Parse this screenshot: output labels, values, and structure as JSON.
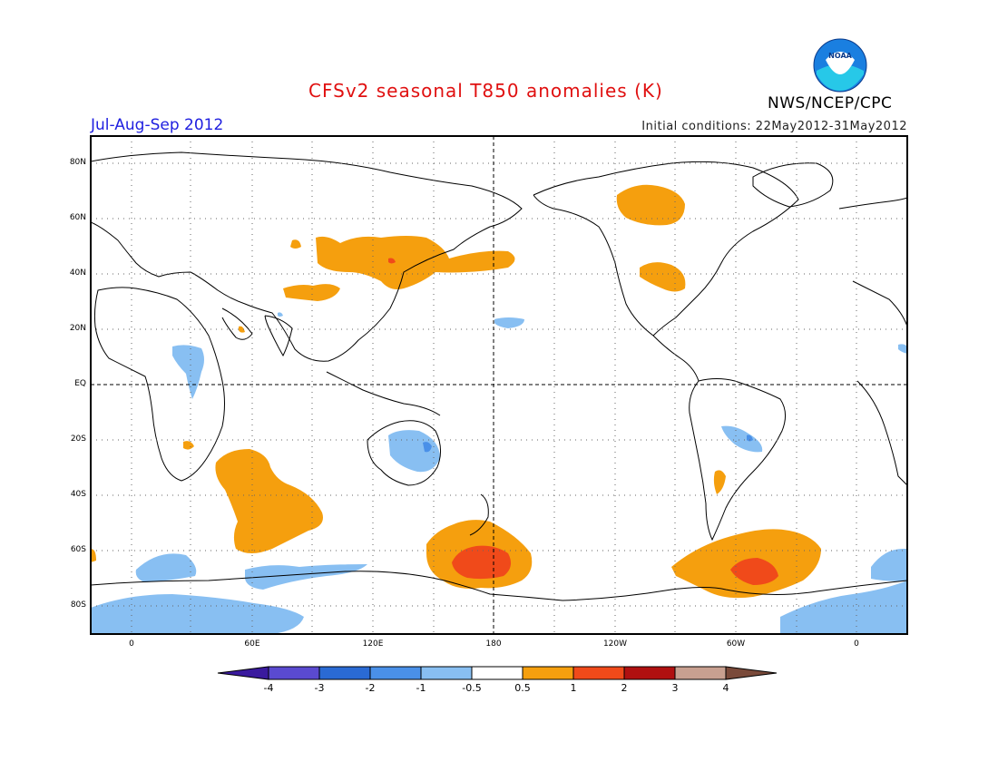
{
  "header": {
    "title": "CFSv2 seasonal T850 anomalies (K)",
    "season": "Jul-Aug-Sep 2012",
    "initial_conditions": "Initial conditions: 22May2012-31May2012",
    "agency": "NWS/NCEP/CPC",
    "logo_text": "NOAA"
  },
  "axes": {
    "lat_labels": [
      "80N",
      "60N",
      "40N",
      "20N",
      "EQ",
      "20S",
      "40S",
      "60S",
      "80S"
    ],
    "lon_labels": [
      "0",
      "60E",
      "120E",
      "180",
      "120W",
      "60W",
      "0"
    ]
  },
  "colorbar": {
    "labels": [
      "-4",
      "-3",
      "-2",
      "-1",
      "-0.5",
      "0.5",
      "1",
      "2",
      "3",
      "4"
    ],
    "colors": [
      "#3a1a9e",
      "#5a4ad0",
      "#2a6ad4",
      "#4a90e8",
      "#88bff2",
      "#ffffff",
      "#f59f0e",
      "#f04a1a",
      "#b01010",
      "#c8a090",
      "#7a4a3a"
    ]
  },
  "colors": {
    "title": "#e01010",
    "season": "#2020e0",
    "positive_05": "#f59f0e",
    "positive_1": "#f04a1a",
    "negative_05": "#88bff2",
    "negative_1": "#4a90e8"
  }
}
